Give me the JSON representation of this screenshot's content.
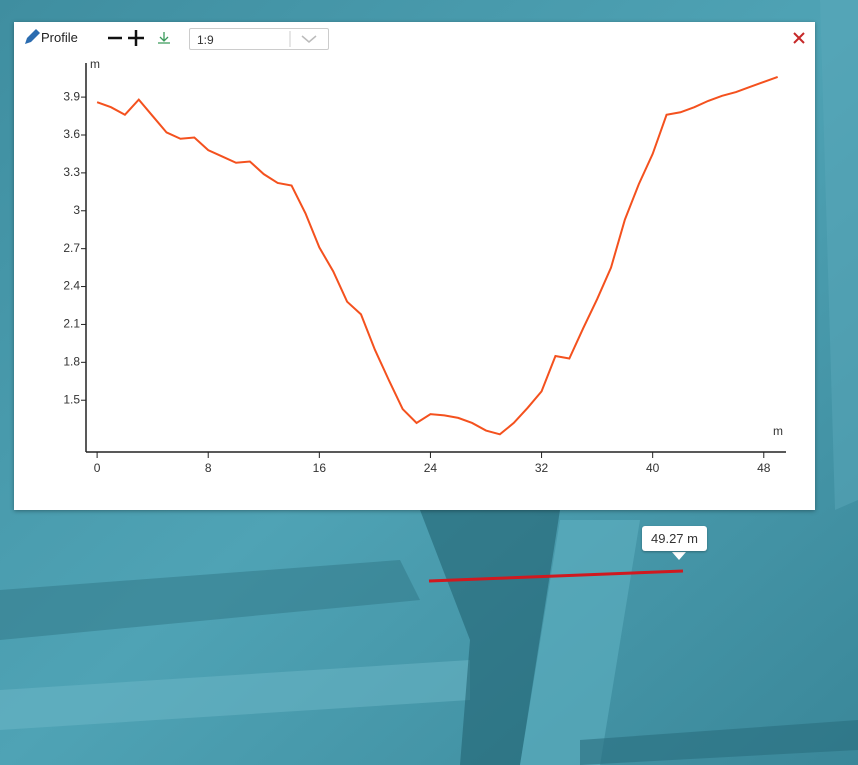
{
  "toolbar": {
    "title": "Profile",
    "scale": "1:9"
  },
  "map": {
    "measure_label": "49.27 m"
  },
  "chart_data": {
    "type": "line",
    "y_label": "m",
    "x_label": "m",
    "x": [
      0,
      1,
      2,
      3,
      4,
      5,
      6,
      7,
      8,
      9,
      10,
      11,
      12,
      13,
      14,
      15,
      16,
      17,
      18,
      19,
      20,
      21,
      22,
      23,
      24,
      25,
      26,
      27,
      28,
      29,
      30,
      31,
      32,
      33,
      34,
      35,
      36,
      37,
      38,
      39,
      40,
      41,
      42,
      43,
      44,
      45,
      46,
      47,
      48,
      49
    ],
    "series": [
      {
        "name": "Profile",
        "color": "#f4511e",
        "values": [
          3.86,
          3.82,
          3.76,
          3.88,
          3.75,
          3.62,
          3.57,
          3.58,
          3.48,
          3.43,
          3.38,
          3.39,
          3.29,
          3.22,
          3.2,
          2.98,
          2.71,
          2.52,
          2.28,
          2.18,
          1.9,
          1.66,
          1.43,
          1.32,
          1.39,
          1.38,
          1.36,
          1.32,
          1.26,
          1.23,
          1.32,
          1.44,
          1.57,
          1.85,
          1.83,
          2.07,
          2.3,
          2.55,
          2.93,
          3.21,
          3.45,
          3.76,
          3.78,
          3.82,
          3.87,
          3.91,
          3.94,
          3.98,
          4.02,
          4.06
        ]
      }
    ],
    "xlim": [
      -0.8,
      49.6
    ],
    "ylim": [
      1.09,
      4.17
    ],
    "xticks": [
      0,
      8,
      16,
      24,
      32,
      40,
      48
    ],
    "yticks": [
      1.5,
      1.8,
      2.1,
      2.4,
      2.7,
      3,
      3.3,
      3.6,
      3.9
    ]
  }
}
